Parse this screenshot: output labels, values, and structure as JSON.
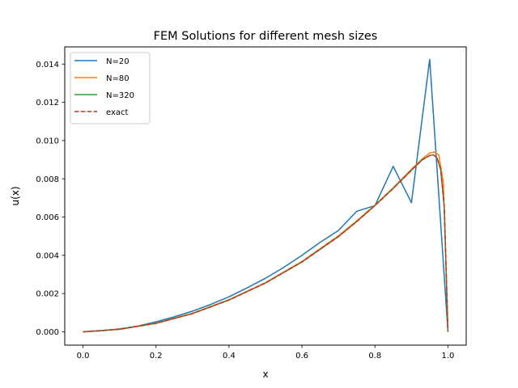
{
  "chart_data": {
    "type": "line",
    "title": "FEM Solutions for different mesh sizes",
    "xlabel": "x",
    "ylabel": "u(x)",
    "xlim": [
      -0.05,
      1.05
    ],
    "ylim": [
      -0.0007,
      0.0149
    ],
    "xticks": [
      0.0,
      0.2,
      0.4,
      0.6,
      0.8,
      1.0
    ],
    "xtick_labels": [
      "0.0",
      "0.2",
      "0.4",
      "0.6",
      "0.8",
      "1.0"
    ],
    "yticks": [
      0.0,
      0.002,
      0.004,
      0.006,
      0.008,
      0.01,
      0.012,
      0.014
    ],
    "ytick_labels": [
      "0.000",
      "0.002",
      "0.004",
      "0.006",
      "0.008",
      "0.010",
      "0.012",
      "0.014"
    ],
    "grid": false,
    "legend_position": "top-left",
    "series": [
      {
        "name": "N=20",
        "color": "#1f77b4",
        "style": "solid",
        "x": [
          0.0,
          0.05,
          0.1,
          0.15,
          0.2,
          0.25,
          0.3,
          0.35,
          0.4,
          0.45,
          0.5,
          0.55,
          0.6,
          0.65,
          0.7,
          0.75,
          0.8,
          0.85,
          0.9,
          0.95,
          1.0
        ],
        "y": [
          0.0,
          5e-05,
          0.00015,
          0.0003,
          0.00052,
          0.00078,
          0.00108,
          0.00143,
          0.00183,
          0.0023,
          0.0028,
          0.00337,
          0.004,
          0.00468,
          0.0053,
          0.0063,
          0.0066,
          0.00865,
          0.00675,
          0.01425,
          0.0
        ]
      },
      {
        "name": "N=80",
        "color": "#ff7f0e",
        "style": "solid",
        "x": [
          0.0,
          0.1,
          0.2,
          0.3,
          0.4,
          0.5,
          0.6,
          0.7,
          0.75,
          0.8,
          0.85,
          0.9,
          0.93,
          0.95,
          0.9625,
          0.975,
          0.9875,
          1.0
        ],
        "y": [
          0.0,
          0.00013,
          0.00045,
          0.00097,
          0.00168,
          0.00257,
          0.00368,
          0.00502,
          0.0058,
          0.00663,
          0.00753,
          0.0085,
          0.00905,
          0.00935,
          0.0094,
          0.00925,
          0.0078,
          0.0
        ]
      },
      {
        "name": "N=320",
        "color": "#2ca02c",
        "style": "solid",
        "x": [
          0.0,
          0.1,
          0.2,
          0.3,
          0.4,
          0.5,
          0.6,
          0.7,
          0.75,
          0.8,
          0.85,
          0.9,
          0.93,
          0.95,
          0.96,
          0.97,
          0.98,
          0.99,
          1.0
        ],
        "y": [
          0.0,
          0.00013,
          0.00044,
          0.00095,
          0.00166,
          0.00255,
          0.00365,
          0.00498,
          0.00576,
          0.0066,
          0.0075,
          0.00845,
          0.009,
          0.00922,
          0.00925,
          0.0091,
          0.0085,
          0.0065,
          0.0
        ]
      },
      {
        "name": "exact",
        "color": "#d62728",
        "style": "dashed",
        "x": [
          0.0,
          0.1,
          0.2,
          0.3,
          0.4,
          0.5,
          0.6,
          0.7,
          0.75,
          0.8,
          0.85,
          0.9,
          0.93,
          0.95,
          0.96,
          0.97,
          0.98,
          0.99,
          1.0
        ],
        "y": [
          0.0,
          0.00013,
          0.00044,
          0.00095,
          0.00166,
          0.00255,
          0.00365,
          0.00498,
          0.00576,
          0.0066,
          0.0075,
          0.00845,
          0.009,
          0.00922,
          0.00925,
          0.0091,
          0.0085,
          0.0065,
          0.0
        ]
      }
    ]
  }
}
